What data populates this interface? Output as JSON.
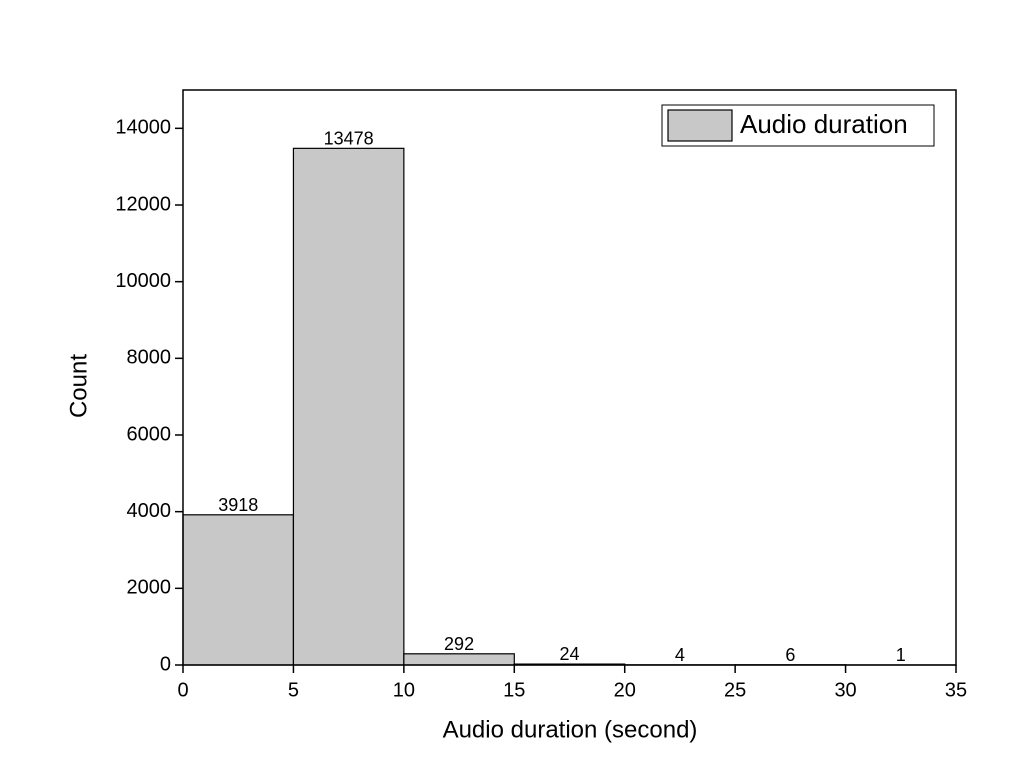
{
  "chart_data": {
    "type": "histogram",
    "bins": [
      0,
      5,
      10,
      15,
      20,
      25,
      30,
      35
    ],
    "values": [
      3918,
      13478,
      292,
      24,
      4,
      6,
      1
    ],
    "series_name": "Audio duration",
    "color": "#c8c8c8",
    "x_label": "Audio duration (second)",
    "y_label": "Count",
    "xlim": [
      0,
      35
    ],
    "xticks": [
      0,
      5,
      10,
      15,
      20,
      25,
      30,
      35
    ],
    "ylim": [
      0,
      15000
    ],
    "yticks": [
      0,
      2000,
      4000,
      6000,
      8000,
      10000,
      12000,
      14000
    ],
    "legend": "upper right"
  }
}
